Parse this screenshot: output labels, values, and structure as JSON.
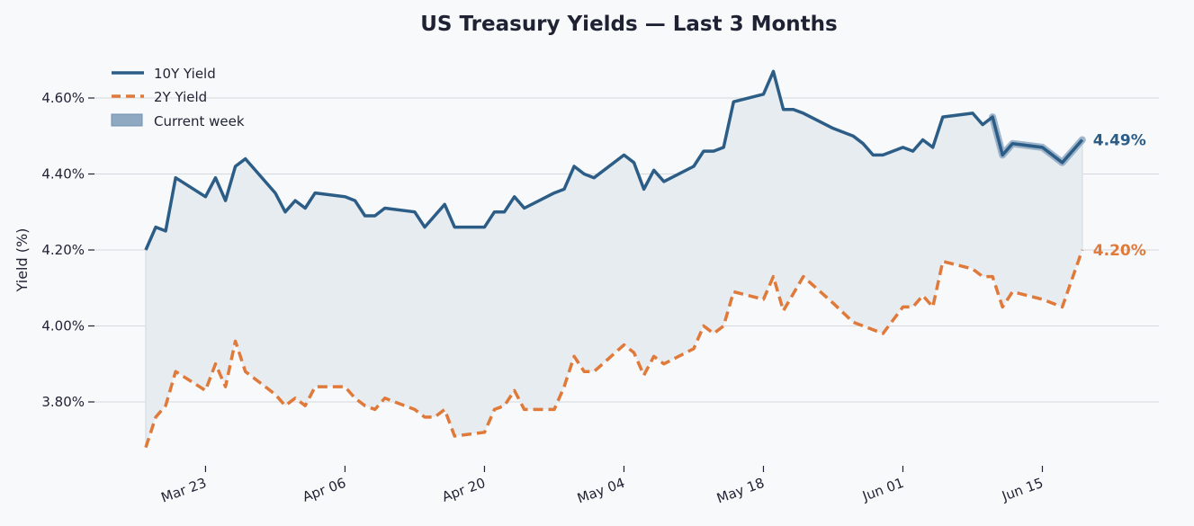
{
  "chart_data": {
    "type": "line",
    "title": "US Treasury Yields — Last 3 Months",
    "xlabel": "",
    "ylabel": "Yield (%)",
    "ylim": [
      3.65,
      4.7
    ],
    "xlim": [
      "2024-03-17",
      "2024-06-22"
    ],
    "yticks": [
      3.8,
      4.0,
      4.2,
      4.4,
      4.6
    ],
    "ytick_labels": [
      "3.80%",
      "4.00%",
      "4.20%",
      "4.40%",
      "4.60%"
    ],
    "xticks": [
      "2024-03-23",
      "2024-04-06",
      "2024-04-20",
      "2024-05-04",
      "2024-05-18",
      "2024-06-01",
      "2024-06-15"
    ],
    "xtick_labels": [
      "Mar 23",
      "Apr 06",
      "Apr 20",
      "May 04",
      "May 18",
      "Jun 01",
      "Jun 15"
    ],
    "grid": "horizontal",
    "legend_position": "top-left",
    "shaded_region": "between-series",
    "highlight": {
      "label": "Current week",
      "from": "2024-06-12",
      "to": "2024-06-19"
    },
    "series": [
      {
        "name": "10Y Yield",
        "color": "#2c5d86",
        "style": "solid",
        "end_label": "4.49%",
        "points": [
          [
            "2024-03-17",
            4.2
          ],
          [
            "2024-03-18",
            4.26
          ],
          [
            "2024-03-19",
            4.25
          ],
          [
            "2024-03-20",
            4.39
          ],
          [
            "2024-03-23",
            4.34
          ],
          [
            "2024-03-24",
            4.39
          ],
          [
            "2024-03-25",
            4.33
          ],
          [
            "2024-03-26",
            4.42
          ],
          [
            "2024-03-27",
            4.44
          ],
          [
            "2024-03-30",
            4.35
          ],
          [
            "2024-03-31",
            4.3
          ],
          [
            "2024-04-01",
            4.33
          ],
          [
            "2024-04-02",
            4.31
          ],
          [
            "2024-04-03",
            4.35
          ],
          [
            "2024-04-06",
            4.34
          ],
          [
            "2024-04-07",
            4.33
          ],
          [
            "2024-04-08",
            4.29
          ],
          [
            "2024-04-09",
            4.29
          ],
          [
            "2024-04-10",
            4.31
          ],
          [
            "2024-04-13",
            4.3
          ],
          [
            "2024-04-14",
            4.26
          ],
          [
            "2024-04-16",
            4.32
          ],
          [
            "2024-04-17",
            4.26
          ],
          [
            "2024-04-20",
            4.26
          ],
          [
            "2024-04-21",
            4.3
          ],
          [
            "2024-04-22",
            4.3
          ],
          [
            "2024-04-23",
            4.34
          ],
          [
            "2024-04-24",
            4.31
          ],
          [
            "2024-04-27",
            4.35
          ],
          [
            "2024-04-28",
            4.36
          ],
          [
            "2024-04-29",
            4.42
          ],
          [
            "2024-04-30",
            4.4
          ],
          [
            "2024-05-01",
            4.39
          ],
          [
            "2024-05-04",
            4.45
          ],
          [
            "2024-05-05",
            4.43
          ],
          [
            "2024-05-06",
            4.36
          ],
          [
            "2024-05-07",
            4.41
          ],
          [
            "2024-05-08",
            4.38
          ],
          [
            "2024-05-11",
            4.42
          ],
          [
            "2024-05-12",
            4.46
          ],
          [
            "2024-05-13",
            4.46
          ],
          [
            "2024-05-14",
            4.47
          ],
          [
            "2024-05-15",
            4.59
          ],
          [
            "2024-05-18",
            4.61
          ],
          [
            "2024-05-19",
            4.67
          ],
          [
            "2024-05-20",
            4.57
          ],
          [
            "2024-05-21",
            4.57
          ],
          [
            "2024-05-22",
            4.56
          ],
          [
            "2024-05-25",
            4.52
          ],
          [
            "2024-05-27",
            4.5
          ],
          [
            "2024-05-28",
            4.48
          ],
          [
            "2024-05-29",
            4.45
          ],
          [
            "2024-05-30",
            4.45
          ],
          [
            "2024-06-01",
            4.47
          ],
          [
            "2024-06-02",
            4.46
          ],
          [
            "2024-06-03",
            4.49
          ],
          [
            "2024-06-04",
            4.47
          ],
          [
            "2024-06-05",
            4.55
          ],
          [
            "2024-06-08",
            4.56
          ],
          [
            "2024-06-09",
            4.53
          ],
          [
            "2024-06-10",
            4.55
          ],
          [
            "2024-06-11",
            4.45
          ],
          [
            "2024-06-12",
            4.48
          ],
          [
            "2024-06-15",
            4.47
          ],
          [
            "2024-06-17",
            4.43
          ],
          [
            "2024-06-19",
            4.49
          ]
        ]
      },
      {
        "name": "2Y Yield",
        "color": "#e07a3a",
        "style": "dashed",
        "end_label": "4.20%",
        "points": [
          [
            "2024-03-17",
            3.68
          ],
          [
            "2024-03-18",
            3.76
          ],
          [
            "2024-03-19",
            3.79
          ],
          [
            "2024-03-20",
            3.88
          ],
          [
            "2024-03-23",
            3.83
          ],
          [
            "2024-03-24",
            3.9
          ],
          [
            "2024-03-25",
            3.84
          ],
          [
            "2024-03-26",
            3.96
          ],
          [
            "2024-03-27",
            3.88
          ],
          [
            "2024-03-30",
            3.82
          ],
          [
            "2024-03-31",
            3.79
          ],
          [
            "2024-04-01",
            3.81
          ],
          [
            "2024-04-02",
            3.79
          ],
          [
            "2024-04-03",
            3.84
          ],
          [
            "2024-04-06",
            3.84
          ],
          [
            "2024-04-07",
            3.81
          ],
          [
            "2024-04-08",
            3.79
          ],
          [
            "2024-04-09",
            3.78
          ],
          [
            "2024-04-10",
            3.81
          ],
          [
            "2024-04-13",
            3.78
          ],
          [
            "2024-04-14",
            3.76
          ],
          [
            "2024-04-15",
            3.76
          ],
          [
            "2024-04-16",
            3.78
          ],
          [
            "2024-04-17",
            3.71
          ],
          [
            "2024-04-20",
            3.72
          ],
          [
            "2024-04-21",
            3.78
          ],
          [
            "2024-04-22",
            3.79
          ],
          [
            "2024-04-23",
            3.83
          ],
          [
            "2024-04-24",
            3.78
          ],
          [
            "2024-04-27",
            3.78
          ],
          [
            "2024-04-28",
            3.84
          ],
          [
            "2024-04-29",
            3.92
          ],
          [
            "2024-04-30",
            3.88
          ],
          [
            "2024-05-01",
            3.88
          ],
          [
            "2024-05-04",
            3.95
          ],
          [
            "2024-05-05",
            3.93
          ],
          [
            "2024-05-06",
            3.87
          ],
          [
            "2024-05-07",
            3.92
          ],
          [
            "2024-05-08",
            3.9
          ],
          [
            "2024-05-11",
            3.94
          ],
          [
            "2024-05-12",
            4.0
          ],
          [
            "2024-05-13",
            3.98
          ],
          [
            "2024-05-14",
            4.0
          ],
          [
            "2024-05-15",
            4.09
          ],
          [
            "2024-05-18",
            4.07
          ],
          [
            "2024-05-19",
            4.13
          ],
          [
            "2024-05-20",
            4.04
          ],
          [
            "2024-05-22",
            4.13
          ],
          [
            "2024-05-25",
            4.06
          ],
          [
            "2024-05-27",
            4.01
          ],
          [
            "2024-05-30",
            3.98
          ],
          [
            "2024-06-01",
            4.05
          ],
          [
            "2024-06-02",
            4.05
          ],
          [
            "2024-06-03",
            4.08
          ],
          [
            "2024-06-04",
            4.05
          ],
          [
            "2024-06-05",
            4.17
          ],
          [
            "2024-06-08",
            4.15
          ],
          [
            "2024-06-09",
            4.13
          ],
          [
            "2024-06-10",
            4.13
          ],
          [
            "2024-06-11",
            4.05
          ],
          [
            "2024-06-12",
            4.09
          ],
          [
            "2024-06-15",
            4.07
          ],
          [
            "2024-06-17",
            4.05
          ],
          [
            "2024-06-19",
            4.2
          ]
        ]
      }
    ]
  },
  "legend": {
    "items": [
      {
        "label": "10Y Yield",
        "kind": "solid-line",
        "color": "#2c5d86"
      },
      {
        "label": "2Y Yield",
        "kind": "dashed-line",
        "color": "#e07a3a"
      },
      {
        "label": "Current week",
        "kind": "patch",
        "color": "#8fa9c2"
      }
    ]
  },
  "colors": {
    "background": "#f7f9fb",
    "grid": "#d5d8de",
    "fill": "#e7ecf1",
    "text": "#1f2233"
  }
}
